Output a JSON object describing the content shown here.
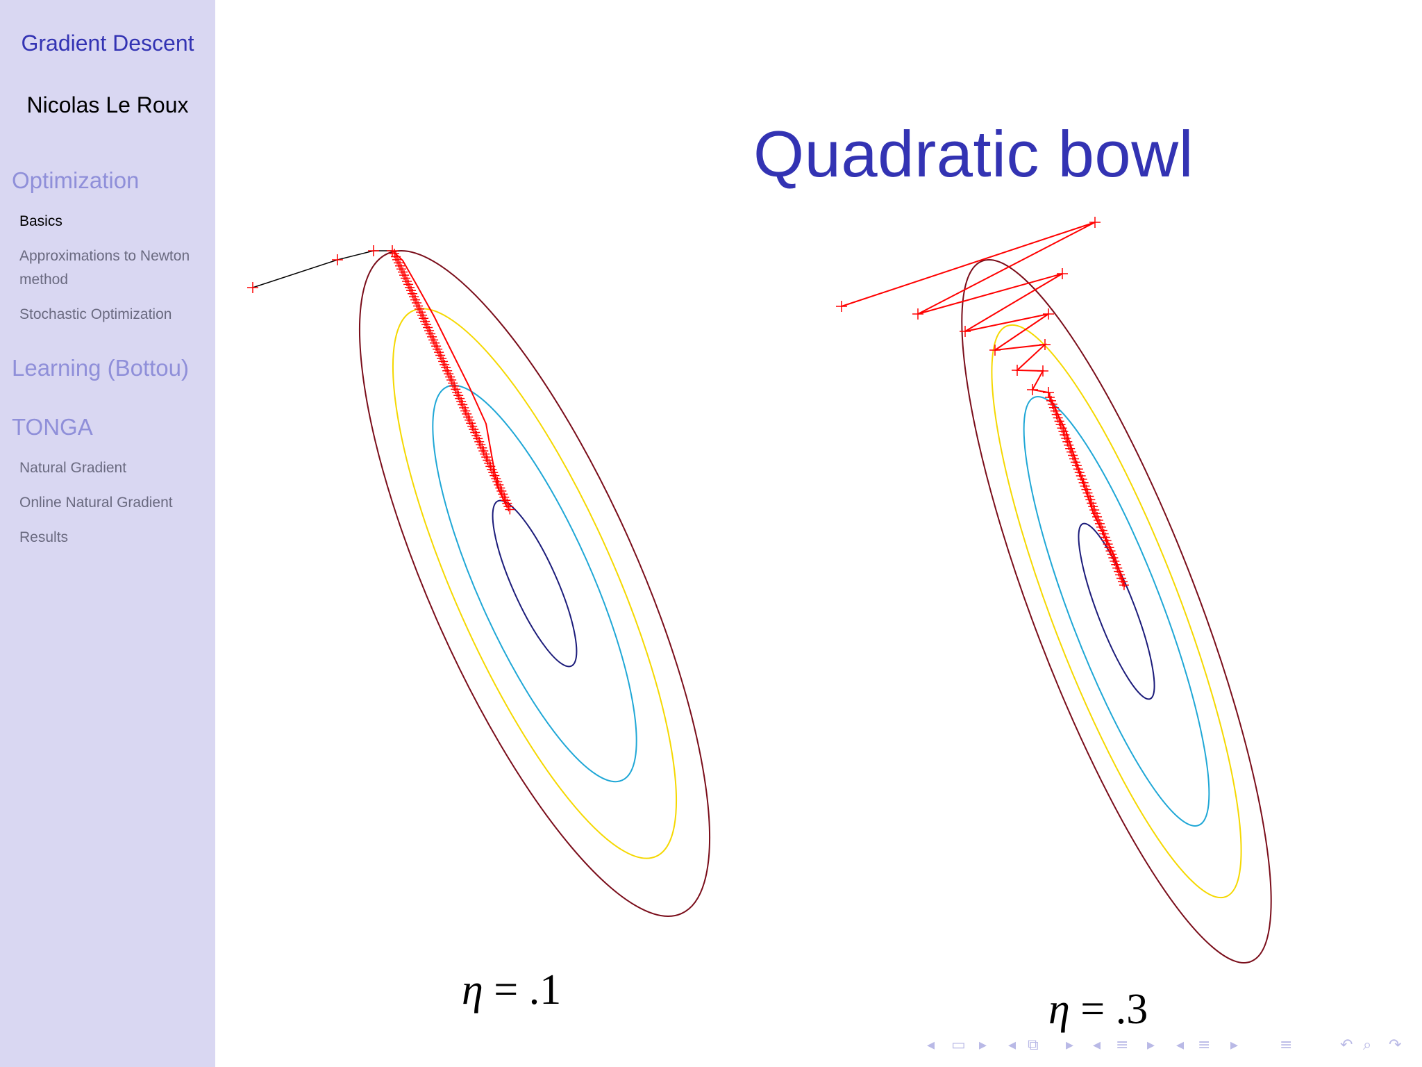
{
  "sidebar": {
    "title": "Gradient Descent",
    "author": "Nicolas Le Roux",
    "sections": [
      {
        "label": "Optimization",
        "subitems": [
          "Basics",
          "Approximations to Newton method",
          "Stochastic Optimization"
        ]
      },
      {
        "label": "Learning (Bottou)",
        "subitems": []
      },
      {
        "label": "TONGA",
        "subitems": [
          "Natural Gradient",
          "Online Natural Gradient",
          "Results"
        ]
      }
    ],
    "active_subitem": "Basics"
  },
  "slide": {
    "title": "Quadratic bowl",
    "plots": [
      {
        "eta_symbol": "η",
        "eta_eq": " = ",
        "eta_value": ".1"
      },
      {
        "eta_symbol": "η",
        "eta_eq": " = ",
        "eta_value": ".3"
      }
    ]
  },
  "colors": {
    "sidebar_bg": "#d9d7f2",
    "title": "#3333b3",
    "section": "#8f8fd9",
    "path": "#ff0000",
    "contour_outer": "#7a0d1a",
    "contour_yellow": "#f5d800",
    "contour_cyan": "#1fa7d6",
    "contour_inner": "#1b1b7a"
  },
  "nav_icons": [
    "arrow-left-icon",
    "frame-icon",
    "arrow-right-icon",
    "arrow-left-icon",
    "subsection-icon",
    "arrow-right-icon",
    "arrow-left-icon",
    "section-icon",
    "arrow-right-icon",
    "arrow-left-icon",
    "subsection-list-icon",
    "arrow-right-icon",
    "align-icon",
    "undo-icon",
    "search-icon",
    "redo-icon"
  ]
}
